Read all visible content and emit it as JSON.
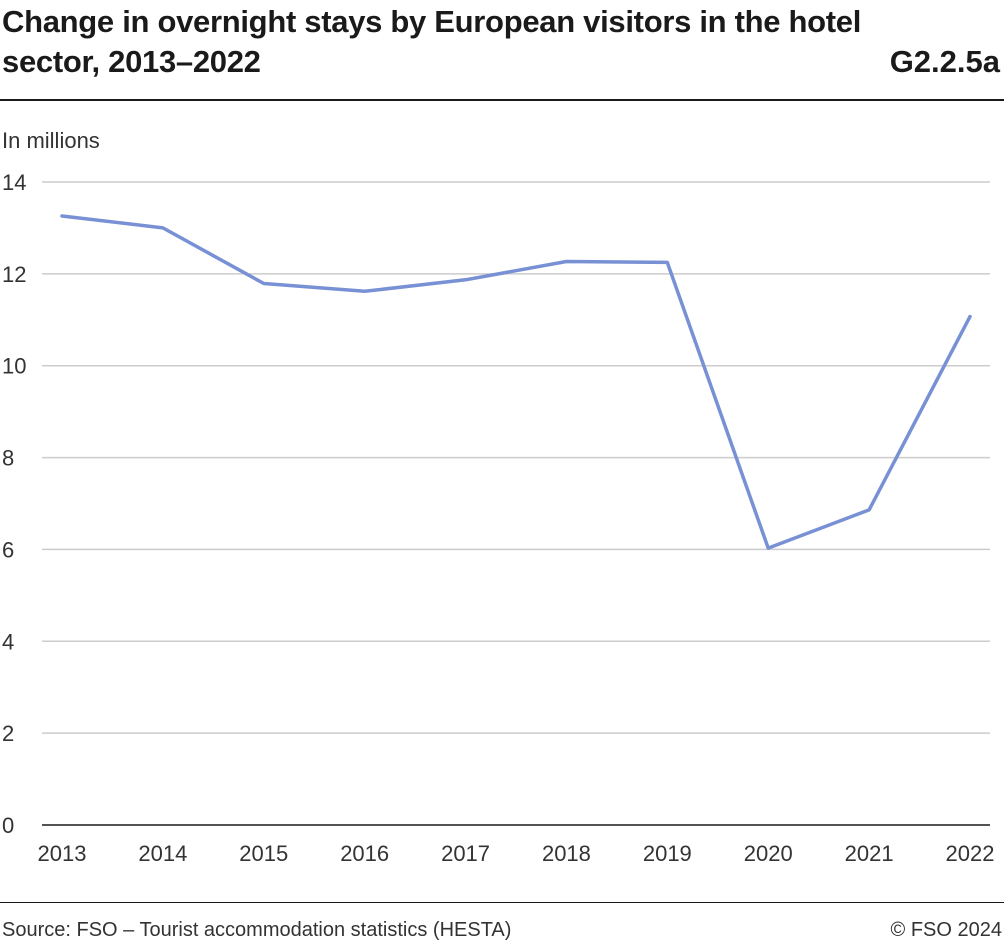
{
  "header": {
    "title": "Change in overnight stays by European visitors in the hotel sector, 2013–2022",
    "chart_id": "G2.2.5a"
  },
  "footer": {
    "source": "Source: FSO – Tourist accommodation statistics (HESTA)",
    "copyright": "© FSO 2024"
  },
  "chart_data": {
    "type": "line",
    "title": "Change in overnight stays by European visitors in the hotel sector, 2013–2022",
    "xlabel": "",
    "ylabel": "In millions",
    "categories": [
      "2013",
      "2014",
      "2015",
      "2016",
      "2017",
      "2018",
      "2019",
      "2020",
      "2021",
      "2022"
    ],
    "series": [
      {
        "name": "European visitors",
        "values": [
          13.26,
          13.0,
          11.79,
          11.62,
          11.87,
          12.27,
          12.25,
          6.03,
          6.86,
          11.07
        ],
        "color": "#7890d4"
      }
    ],
    "ylim": [
      0,
      14
    ],
    "yticks": [
      0,
      2,
      4,
      6,
      8,
      10,
      12,
      14
    ],
    "grid": true,
    "gridColor": "#cccccc",
    "axisColor": "#1a1a1a"
  }
}
